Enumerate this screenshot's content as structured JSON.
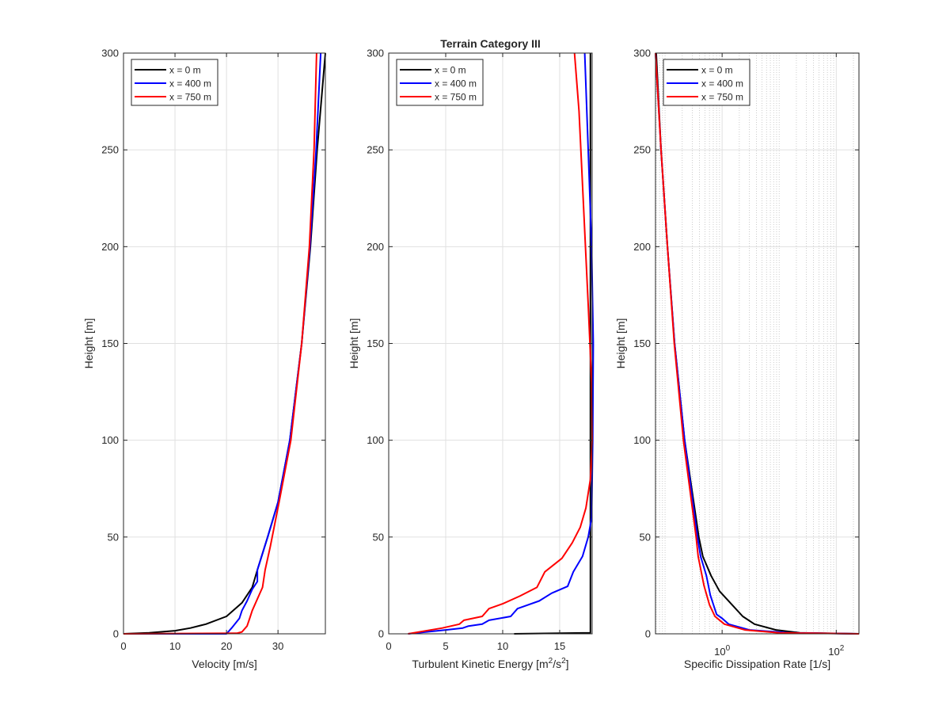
{
  "chart_data": [
    {
      "type": "line",
      "title": "",
      "xlabel": "Velocity [m/s]",
      "ylabel": "Height [m]",
      "xscale": "linear",
      "xlim": [
        0,
        39.2
      ],
      "ylim": [
        0,
        300
      ],
      "xticks": [
        0,
        10,
        20,
        30
      ],
      "xtick_labels": [
        "0",
        "10",
        "20",
        "30"
      ],
      "yticks": [
        0,
        50,
        100,
        150,
        200,
        250,
        300
      ],
      "ytick_labels": [
        "0",
        "50",
        "100",
        "150",
        "200",
        "250",
        "300"
      ],
      "grid": true,
      "legend": "top-left",
      "series": [
        {
          "name": "x = 0 m",
          "color": "#000000",
          "x": [
            0,
            5,
            10,
            13,
            16,
            20,
            23,
            25,
            26,
            28,
            30,
            32.3,
            34.6,
            36.3,
            37.6,
            39.2
          ],
          "y": [
            0,
            0.5,
            1.6,
            3,
            5,
            9,
            16,
            24,
            33,
            50,
            68,
            100,
            150,
            200,
            250,
            300
          ]
        },
        {
          "name": "x = 400 m",
          "color": "#0000ff",
          "x": [
            0,
            20,
            21,
            22.5,
            23,
            24,
            25,
            26,
            26,
            28,
            30,
            32.3,
            34.6,
            36.2,
            37.4,
            38.3
          ],
          "y": [
            0,
            0,
            3,
            8,
            12,
            17,
            23,
            27,
            33,
            50,
            68,
            100,
            150,
            200,
            250,
            300
          ]
        },
        {
          "name": "x = 750 m",
          "color": "#ff0000",
          "x": [
            0,
            22,
            23,
            24,
            24.5,
            25,
            26,
            27,
            27.5,
            28.5,
            30.2,
            32.5,
            34.6,
            36.1,
            37,
            37.5
          ],
          "y": [
            0,
            0.3,
            1,
            4,
            8,
            12,
            18,
            24,
            33,
            45,
            68,
            100,
            150,
            200,
            250,
            300
          ]
        }
      ]
    },
    {
      "type": "line",
      "title": "Terrain Category III",
      "xlabel": "Turbulent Kinetic Energy [m²/s²]",
      "ylabel": "Height [m]",
      "xscale": "linear",
      "xlim": [
        0,
        17.85
      ],
      "ylim": [
        0,
        300
      ],
      "xticks": [
        0,
        5,
        10,
        15
      ],
      "xtick_labels": [
        "0",
        "5",
        "10",
        "15"
      ],
      "yticks": [
        0,
        50,
        100,
        150,
        200,
        250,
        300
      ],
      "ytick_labels": [
        "0",
        "50",
        "100",
        "150",
        "200",
        "250",
        "300"
      ],
      "grid": true,
      "legend": "top-left",
      "series": [
        {
          "name": "x = 0 m",
          "color": "#000000",
          "x": [
            11,
            17.7,
            17.7
          ],
          "y": [
            0,
            0.5,
            300
          ]
        },
        {
          "name": "x = 400 m",
          "color": "#0000ff",
          "x": [
            1.7,
            5,
            6.5,
            7,
            8.2,
            8.8,
            10.7,
            11.3,
            13.2,
            14.3,
            15.7,
            16.2,
            17,
            17.5,
            17.8,
            17.9,
            17.95,
            17.8,
            17.5,
            17.2
          ],
          "y": [
            0,
            2,
            3,
            4,
            5,
            7,
            9,
            13,
            17,
            21,
            24.5,
            32,
            40,
            50,
            60,
            100,
            150,
            200,
            250,
            300
          ]
        },
        {
          "name": "x = 750 m",
          "color": "#ff0000",
          "x": [
            1.7,
            4.7,
            6.2,
            6.6,
            8.2,
            8.8,
            10,
            11.5,
            13,
            13.7,
            15.2,
            16.1,
            16.8,
            17.3,
            17.7,
            17.85,
            17.8,
            17.5,
            17.1,
            16.7,
            16.3
          ],
          "y": [
            0,
            3,
            5,
            7,
            9,
            13,
            15.5,
            19.5,
            24,
            32,
            39,
            47,
            55,
            65,
            80,
            100,
            130,
            170,
            220,
            270,
            300
          ]
        }
      ]
    },
    {
      "type": "line",
      "title": "",
      "xlabel": "Specific Dissipation Rate [1/s]",
      "ylabel": "Height [m]",
      "xscale": "log",
      "xlim": [
        0.068,
        250
      ],
      "ylim": [
        0,
        300
      ],
      "xticks": [
        1,
        100
      ],
      "xtick_labels": [
        "10^0",
        "10^2"
      ],
      "yticks": [
        0,
        50,
        100,
        150,
        200,
        250,
        300
      ],
      "ytick_labels": [
        "0",
        "50",
        "100",
        "150",
        "200",
        "250",
        "300"
      ],
      "grid": true,
      "minor_grid": true,
      "legend": "top-left",
      "series": [
        {
          "name": "x = 0 m",
          "color": "#000000",
          "x": [
            250,
            23,
            8.8,
            3.7,
            2.3,
            0.9,
            0.64,
            0.46,
            0.39,
            0.22,
            0.147,
            0.11,
            0.085,
            0.07
          ],
          "y": [
            0,
            0.5,
            2,
            5,
            9,
            22,
            30,
            40,
            50,
            100,
            150,
            200,
            250,
            300
          ]
        },
        {
          "name": "x = 400 m",
          "color": "#0000ff",
          "x": [
            250,
            15,
            3,
            1.3,
            1,
            0.8,
            0.62,
            0.53,
            0.42,
            0.37,
            0.22,
            0.147,
            0.11,
            0.085,
            0.068
          ],
          "y": [
            0,
            0.5,
            2,
            5,
            8,
            10,
            20,
            30,
            40,
            50,
            100,
            150,
            200,
            250,
            300
          ]
        },
        {
          "name": "x = 750 m",
          "color": "#ff0000",
          "x": [
            250,
            10,
            2.5,
            1.1,
            0.75,
            0.6,
            0.48,
            0.38,
            0.35,
            0.21,
            0.145,
            0.11,
            0.085,
            0.068
          ],
          "y": [
            0,
            0.5,
            2,
            5,
            9,
            15,
            25,
            40,
            50,
            100,
            150,
            200,
            250,
            300
          ]
        }
      ]
    }
  ]
}
